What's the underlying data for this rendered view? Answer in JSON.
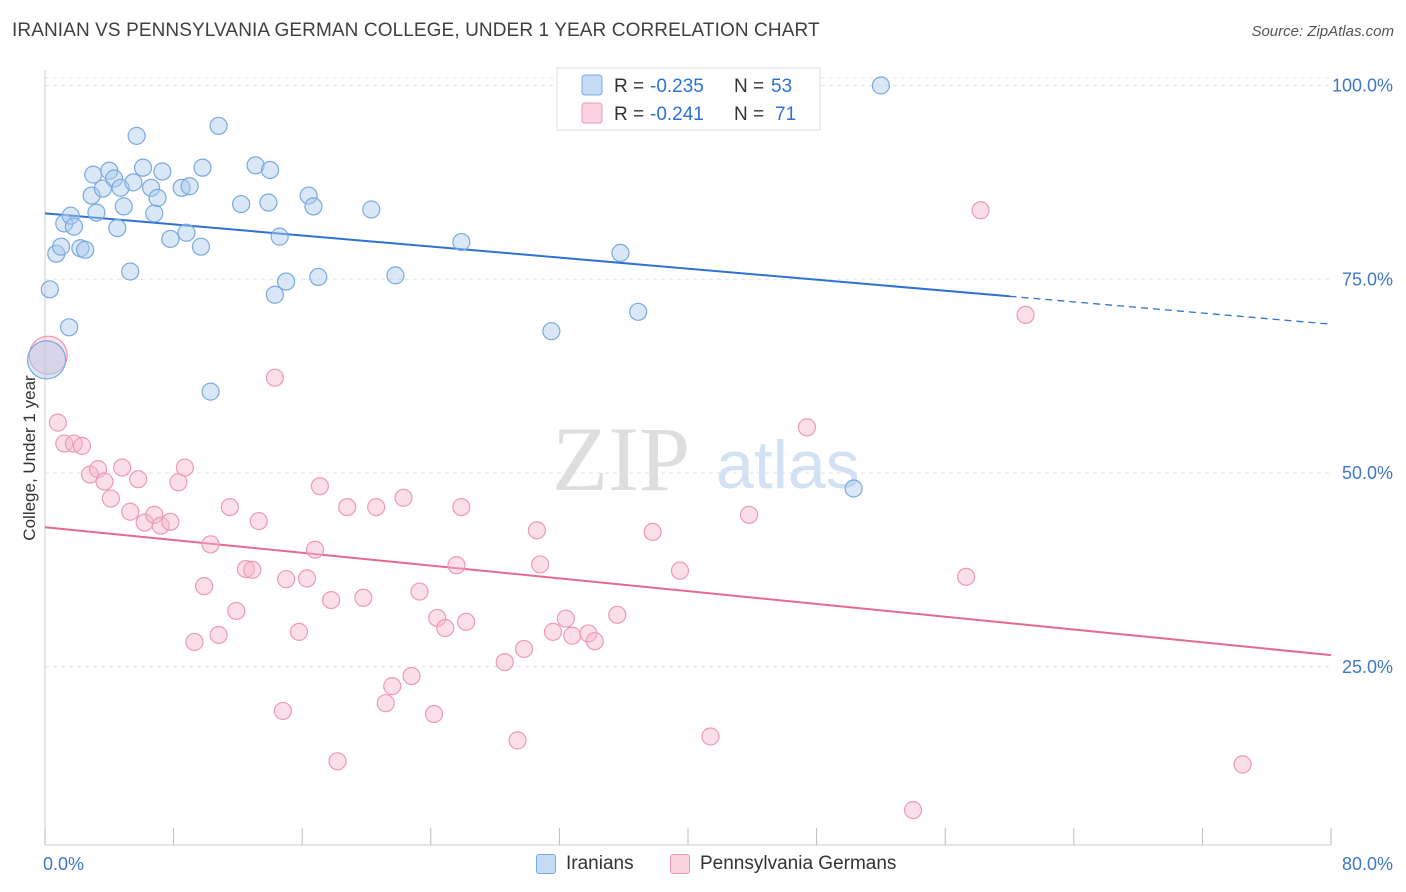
{
  "header": {
    "title": "IRANIAN VS PENNSYLVANIA GERMAN COLLEGE, UNDER 1 YEAR CORRELATION CHART",
    "source": "Source: ZipAtlas.com"
  },
  "watermark": {
    "part1": "ZIP",
    "part2": "atlas"
  },
  "legend_top": [
    {
      "r_label": "R =",
      "r_value": "-0.235",
      "n_label": "N =",
      "n_value": "53",
      "color": "#a9c9ee"
    },
    {
      "r_label": "R =",
      "r_value": "-0.241",
      "n_label": "N =",
      "n_value": "71",
      "color": "#f5b8cc"
    }
  ],
  "legend_bottom": [
    {
      "label": "Iranians",
      "color": "#c5dbf5"
    },
    {
      "label": "Pennsylvania Germans",
      "color": "#fbd3df"
    }
  ],
  "chart_data": {
    "type": "scatter",
    "title": "IRANIAN VS PENNSYLVANIA GERMAN COLLEGE, UNDER 1 YEAR CORRELATION CHART",
    "xlabel": "",
    "ylabel": "College, Under 1 year",
    "xlim": [
      0,
      80
    ],
    "ylim": [
      2,
      102
    ],
    "x_tick_labels": [
      "0.0%",
      "80.0%"
    ],
    "y_ticks": [
      25,
      50,
      75,
      100
    ],
    "y_tick_labels": [
      "25.0%",
      "50.0%",
      "75.0%",
      "100.0%"
    ],
    "grid": true,
    "legend_position": "top-center",
    "colors": {
      "Iranians": "#5b93d9",
      "Pennsylvania Germans": "#e8779d"
    },
    "series": [
      {
        "name": "Iranians",
        "stroke": "#7aa9e0",
        "fill": "rgba(170,201,238,0.45)",
        "line_color": "#2e72d2",
        "trend": {
          "x0": 0,
          "y0": 83.5,
          "x1": 60,
          "y1": 72.8,
          "x_dash_end": 80,
          "y_dash_end": 69.2
        },
        "points": [
          [
            0.3,
            73.7
          ],
          [
            0.7,
            78.3
          ],
          [
            1.0,
            79.2
          ],
          [
            1.2,
            82.2
          ],
          [
            1.5,
            68.8
          ],
          [
            1.6,
            83.2
          ],
          [
            1.8,
            81.8
          ],
          [
            2.2,
            79.0
          ],
          [
            2.5,
            78.8
          ],
          [
            2.9,
            85.8
          ],
          [
            3.0,
            88.5
          ],
          [
            3.2,
            83.6
          ],
          [
            3.6,
            86.7
          ],
          [
            4.0,
            89.0
          ],
          [
            4.3,
            88.0
          ],
          [
            4.5,
            81.6
          ],
          [
            4.7,
            86.8
          ],
          [
            4.9,
            84.4
          ],
          [
            5.3,
            76.0
          ],
          [
            5.5,
            87.5
          ],
          [
            5.7,
            93.5
          ],
          [
            6.1,
            89.4
          ],
          [
            6.6,
            86.8
          ],
          [
            6.8,
            83.5
          ],
          [
            7.0,
            85.5
          ],
          [
            7.3,
            88.9
          ],
          [
            7.8,
            80.2
          ],
          [
            8.5,
            86.8
          ],
          [
            8.8,
            81.0
          ],
          [
            9.0,
            87.0
          ],
          [
            9.7,
            79.2
          ],
          [
            9.8,
            89.4
          ],
          [
            10.3,
            60.5
          ],
          [
            10.8,
            94.8
          ],
          [
            12.2,
            84.7
          ],
          [
            13.1,
            89.7
          ],
          [
            13.9,
            84.9
          ],
          [
            14.0,
            89.1
          ],
          [
            14.3,
            73.0
          ],
          [
            14.6,
            80.5
          ],
          [
            15.0,
            74.7
          ],
          [
            16.4,
            85.8
          ],
          [
            16.7,
            84.4
          ],
          [
            17.0,
            75.3
          ],
          [
            20.3,
            84.0
          ],
          [
            21.8,
            75.5
          ],
          [
            25.9,
            79.8
          ],
          [
            31.5,
            68.3
          ],
          [
            35.8,
            78.4
          ],
          [
            36.9,
            70.8
          ],
          [
            50.3,
            48.0
          ],
          [
            52.0,
            100.0
          ],
          [
            0.1,
            64.6
          ]
        ]
      },
      {
        "name": "Pennsylvania Germans",
        "stroke": "#ee9ab5",
        "fill": "rgba(245,184,204,0.45)",
        "line_color": "#e46995",
        "trend": {
          "x0": 0,
          "y0": 43.0,
          "x1": 80,
          "y1": 26.5
        },
        "points": [
          [
            0.8,
            56.5
          ],
          [
            1.2,
            53.8
          ],
          [
            1.8,
            53.8
          ],
          [
            2.3,
            53.5
          ],
          [
            2.8,
            49.8
          ],
          [
            3.3,
            50.5
          ],
          [
            3.7,
            48.9
          ],
          [
            4.1,
            46.7
          ],
          [
            4.8,
            50.7
          ],
          [
            5.3,
            45.0
          ],
          [
            5.8,
            49.2
          ],
          [
            6.2,
            43.6
          ],
          [
            6.8,
            44.6
          ],
          [
            7.2,
            43.2
          ],
          [
            7.8,
            43.7
          ],
          [
            8.3,
            48.8
          ],
          [
            8.7,
            50.7
          ],
          [
            9.3,
            28.2
          ],
          [
            9.9,
            35.4
          ],
          [
            10.3,
            40.8
          ],
          [
            10.8,
            29.1
          ],
          [
            11.5,
            45.6
          ],
          [
            11.9,
            32.2
          ],
          [
            12.5,
            37.6
          ],
          [
            12.9,
            37.5
          ],
          [
            13.3,
            43.8
          ],
          [
            14.3,
            62.3
          ],
          [
            14.8,
            19.3
          ],
          [
            15.0,
            36.3
          ],
          [
            15.8,
            29.5
          ],
          [
            16.3,
            36.4
          ],
          [
            16.8,
            40.1
          ],
          [
            17.1,
            48.3
          ],
          [
            17.8,
            33.6
          ],
          [
            18.2,
            12.8
          ],
          [
            18.8,
            45.6
          ],
          [
            19.8,
            33.9
          ],
          [
            20.6,
            45.6
          ],
          [
            21.2,
            20.3
          ],
          [
            21.6,
            22.5
          ],
          [
            22.3,
            46.8
          ],
          [
            22.8,
            23.8
          ],
          [
            23.3,
            34.7
          ],
          [
            24.2,
            18.9
          ],
          [
            24.4,
            31.3
          ],
          [
            24.9,
            30.0
          ],
          [
            25.6,
            38.1
          ],
          [
            25.9,
            45.6
          ],
          [
            26.2,
            30.8
          ],
          [
            28.6,
            25.6
          ],
          [
            29.4,
            15.5
          ],
          [
            29.8,
            27.3
          ],
          [
            30.6,
            42.6
          ],
          [
            30.8,
            38.2
          ],
          [
            31.6,
            29.5
          ],
          [
            32.4,
            31.2
          ],
          [
            32.8,
            29.0
          ],
          [
            33.8,
            29.3
          ],
          [
            34.2,
            28.3
          ],
          [
            35.6,
            31.7
          ],
          [
            37.8,
            42.4
          ],
          [
            39.5,
            37.4
          ],
          [
            41.4,
            16.0
          ],
          [
            43.8,
            44.6
          ],
          [
            47.4,
            55.9
          ],
          [
            54.0,
            6.5
          ],
          [
            57.3,
            36.6
          ],
          [
            58.2,
            83.9
          ],
          [
            61.0,
            70.4
          ],
          [
            74.5,
            12.4
          ],
          [
            0.2,
            65.2
          ]
        ]
      }
    ]
  }
}
